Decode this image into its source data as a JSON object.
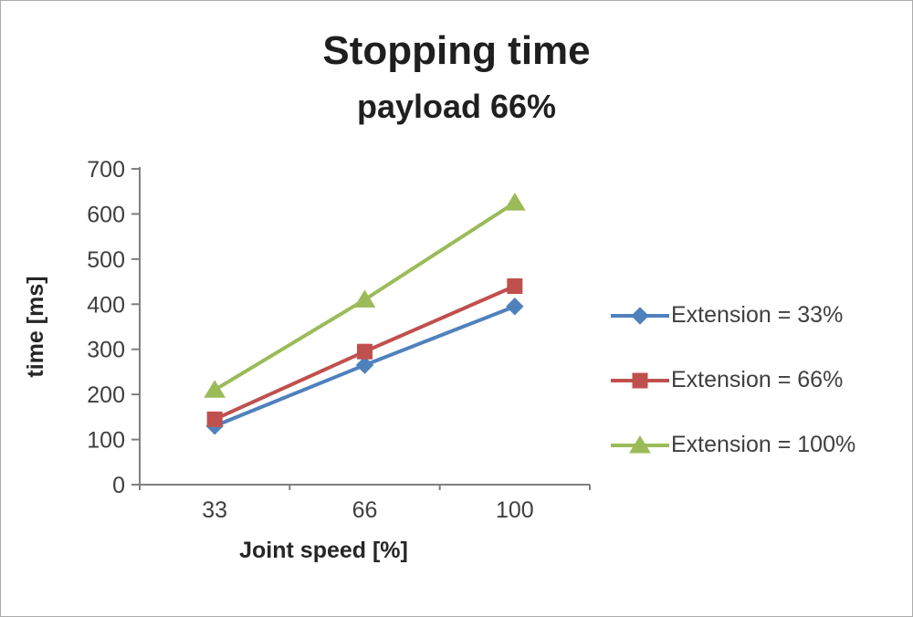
{
  "title": "Stopping time",
  "subtitle": "payload 66%",
  "chart_data": {
    "type": "line",
    "categories": [
      "33",
      "66",
      "100"
    ],
    "series": [
      {
        "name": "Extension = 33%",
        "color": "#4f81bd",
        "marker": "diamond",
        "values": [
          130,
          265,
          395
        ]
      },
      {
        "name": "Extension = 66%",
        "color": "#c0504d",
        "marker": "square",
        "values": [
          145,
          295,
          440
        ]
      },
      {
        "name": "Extension = 100%",
        "color": "#9bbb59",
        "marker": "triangle",
        "values": [
          210,
          410,
          625
        ]
      }
    ],
    "xlabel": "Joint speed [%]",
    "ylabel": "time [ms]",
    "ylim": [
      0,
      700
    ],
    "ytick_step": 100,
    "grid": false,
    "legend_position": "right"
  },
  "colors": {
    "axis": "#7f7f7f",
    "tick_text": "#3f3f3f",
    "axis_title_text": "#262626"
  }
}
